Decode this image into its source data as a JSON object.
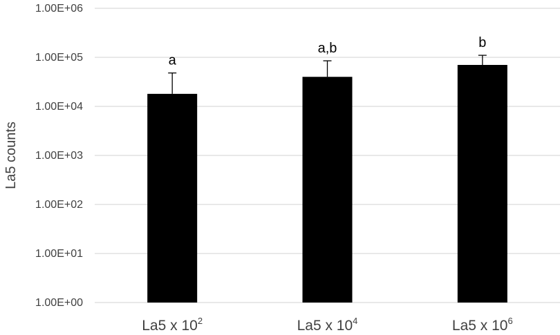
{
  "chart_data": {
    "type": "bar",
    "title": "",
    "xlabel": "",
    "ylabel": "La5 counts",
    "yscale": "log",
    "ylim": [
      1,
      1000000
    ],
    "yticks": [
      {
        "value": 1,
        "label": "1.00E+00"
      },
      {
        "value": 10,
        "label": "1.00E+01"
      },
      {
        "value": 100,
        "label": "1.00E+02"
      },
      {
        "value": 1000,
        "label": "1.00E+03"
      },
      {
        "value": 10000,
        "label": "1.00E+04"
      },
      {
        "value": 100000,
        "label": "1.00E+05"
      },
      {
        "value": 1000000,
        "label": "1.00E+06"
      }
    ],
    "grid": true,
    "legend": "none",
    "bar_color": "#000000",
    "categories": [
      {
        "base": "La5 x 10",
        "exponent": "2"
      },
      {
        "base": "La5 x 10",
        "exponent": "4"
      },
      {
        "base": "La5 x 10",
        "exponent": "6"
      }
    ],
    "values": [
      18000,
      40000,
      70000
    ],
    "error_upper": [
      48000,
      85000,
      110000
    ],
    "significance_labels": [
      "a",
      "a,b",
      "b"
    ]
  }
}
